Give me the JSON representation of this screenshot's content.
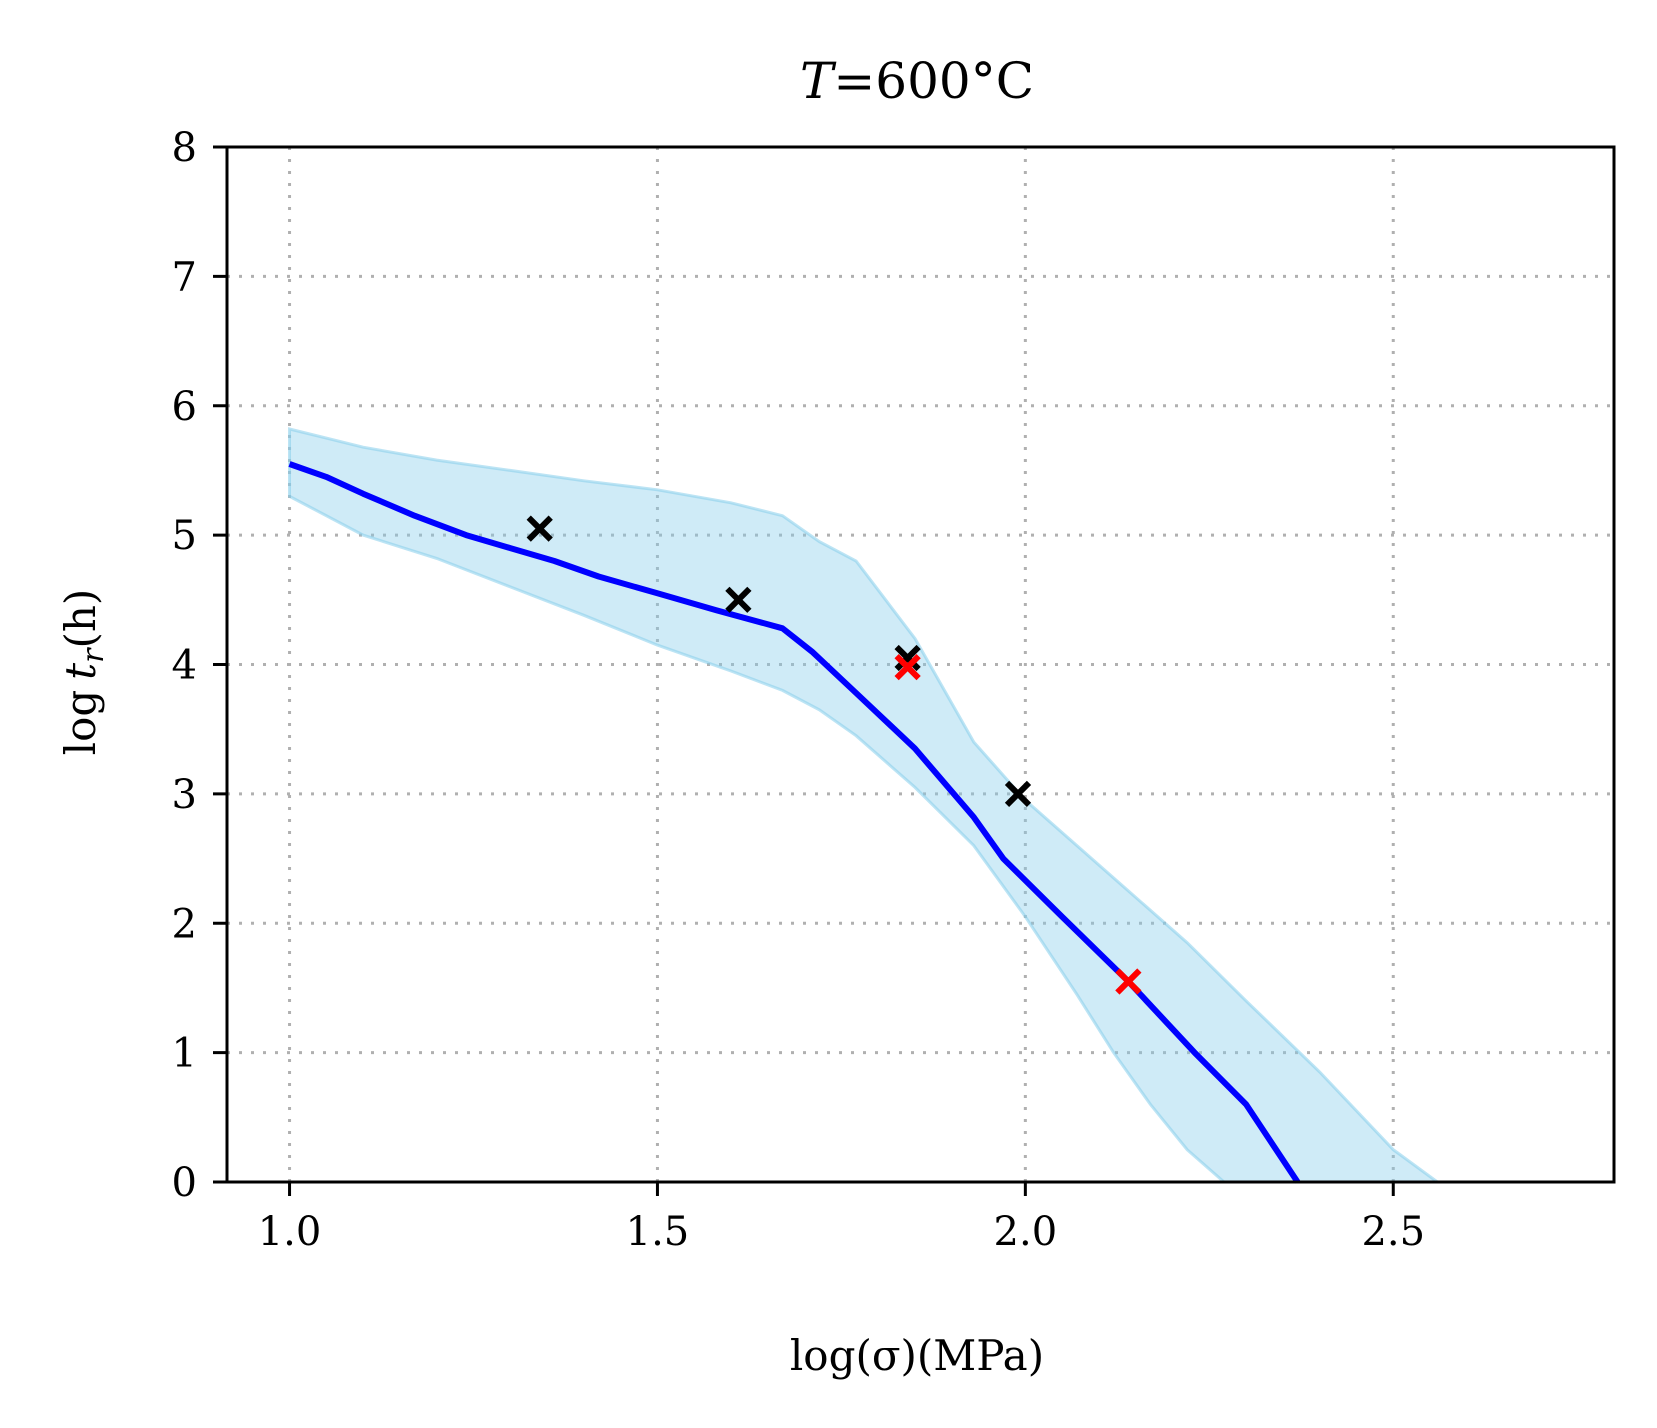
{
  "chart_data": {
    "type": "line",
    "title": "T=600°C",
    "title_italic": "T",
    "title_rest": "=600°C",
    "xlabel": "log(σ)(MPa)",
    "ylabel": "log t_r(h)",
    "ylabel_parts": {
      "log": "log",
      "t": "t",
      "sub": "r",
      "unit": "(h)"
    },
    "xlim": [
      0.915,
      2.8
    ],
    "ylim": [
      0,
      8
    ],
    "xticks": [
      1.0,
      1.5,
      2.0,
      2.5
    ],
    "xtick_labels": [
      "1.0",
      "1.5",
      "2.0",
      "2.5"
    ],
    "yticks": [
      0,
      1,
      2,
      3,
      4,
      5,
      6,
      7,
      8
    ],
    "ytick_labels": [
      "0",
      "1",
      "2",
      "3",
      "4",
      "5",
      "6",
      "7",
      "8"
    ],
    "grid": true,
    "colors": {
      "mean_line": "#0000ff",
      "band_fill": "#87ceeb",
      "band_edge": "#87ceeb",
      "marker_black": "#000000",
      "marker_red": "#ff0000",
      "grid": "#b0b0b0",
      "axes": "#000000"
    },
    "series": [
      {
        "name": "mean prediction",
        "kind": "line",
        "x": [
          1.0,
          1.05,
          1.1,
          1.17,
          1.24,
          1.3,
          1.36,
          1.42,
          1.5,
          1.58,
          1.67,
          1.71,
          1.77,
          1.85,
          1.93,
          1.97,
          2.05,
          2.14,
          2.23,
          2.3,
          2.37
        ],
        "y": [
          5.55,
          5.45,
          5.32,
          5.15,
          5.0,
          4.9,
          4.8,
          4.68,
          4.55,
          4.42,
          4.28,
          4.1,
          3.78,
          3.35,
          2.82,
          2.5,
          2.05,
          1.55,
          1.0,
          0.6,
          0.0
        ]
      },
      {
        "name": "uncertainty band upper",
        "kind": "band_upper",
        "x": [
          1.0,
          1.05,
          1.1,
          1.2,
          1.3,
          1.4,
          1.5,
          1.6,
          1.67,
          1.72,
          1.77,
          1.85,
          1.93,
          2.0,
          2.1,
          2.22,
          2.3,
          2.4,
          2.5,
          2.56
        ],
        "y": [
          5.82,
          5.75,
          5.68,
          5.58,
          5.5,
          5.42,
          5.35,
          5.25,
          5.15,
          4.95,
          4.8,
          4.2,
          3.4,
          2.95,
          2.45,
          1.85,
          1.4,
          0.85,
          0.25,
          0.0
        ]
      },
      {
        "name": "uncertainty band lower",
        "kind": "band_lower",
        "x": [
          1.0,
          1.05,
          1.1,
          1.2,
          1.3,
          1.4,
          1.5,
          1.6,
          1.67,
          1.72,
          1.77,
          1.85,
          1.93,
          2.0,
          2.07,
          2.12,
          2.17,
          2.22,
          2.27
        ],
        "y": [
          5.3,
          5.15,
          5.0,
          4.82,
          4.6,
          4.38,
          4.15,
          3.95,
          3.8,
          3.65,
          3.45,
          3.05,
          2.6,
          2.05,
          1.45,
          1.0,
          0.6,
          0.25,
          0.0
        ]
      },
      {
        "name": "experimental (black)",
        "kind": "markers",
        "marker": "x",
        "color": "black",
        "x": [
          1.34,
          1.61,
          1.84,
          1.99
        ],
        "y": [
          5.05,
          4.5,
          4.05,
          3.0
        ]
      },
      {
        "name": "experimental (red)",
        "kind": "markers",
        "marker": "x",
        "color": "red",
        "x": [
          1.84,
          2.14
        ],
        "y": [
          3.98,
          1.55
        ]
      }
    ]
  }
}
